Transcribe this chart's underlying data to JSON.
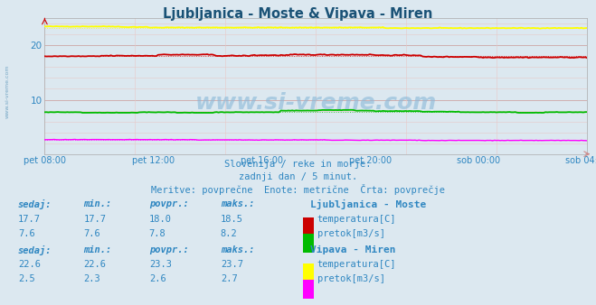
{
  "title": "Ljubljanica - Moste & Vipava - Miren",
  "title_color": "#1a5276",
  "bg_color": "#dce8f0",
  "plot_bg_color": "#dce8f0",
  "xlabel_ticks": [
    "pet 08:00",
    "pet 12:00",
    "pet 16:00",
    "pet 20:00",
    "sob 00:00",
    "sob 04:00"
  ],
  "ylim": [
    0,
    25
  ],
  "yticks": [
    10,
    20
  ],
  "grid_color": "#c8a0a0",
  "grid_color_light": "#e8c8c8",
  "watermark": "www.si-vreme.com",
  "subtitle1": "Slovenija / reke in morje.",
  "subtitle2": "zadnji dan / 5 minut.",
  "subtitle3": "Meritve: povprečne  Enote: metrične  Črta: povprečje",
  "subtitle_color": "#2e86c1",
  "num_points": 288,
  "lj_temp_avg": 18.0,
  "lj_temp_min": 17.7,
  "lj_temp_max": 18.5,
  "lj_temp_color": "#cc0000",
  "lj_pretok_avg": 7.8,
  "lj_pretok_min": 7.6,
  "lj_pretok_max": 8.2,
  "lj_pretok_color": "#00bb00",
  "vip_temp_avg": 23.3,
  "vip_temp_min": 22.6,
  "vip_temp_max": 23.7,
  "vip_temp_color": "#ffff00",
  "vip_pretok_avg": 2.6,
  "vip_pretok_min": 2.3,
  "vip_pretok_max": 2.7,
  "vip_pretok_color": "#ff00ff",
  "legend_label_lj": "Ljubljanica - Moste",
  "legend_label_vip": "Vipava - Miren",
  "label_temp": "temperatura[C]",
  "label_pretok": "pretok[m3/s]",
  "sedaj_lj_temp": 17.7,
  "min_lj_temp": 17.7,
  "povpr_lj_temp": 18.0,
  "maks_lj_temp": 18.5,
  "sedaj_lj_pretok": 7.6,
  "min_lj_pretok": 7.6,
  "povpr_lj_pretok": 7.8,
  "maks_lj_pretok": 8.2,
  "sedaj_vip_temp": 22.6,
  "min_vip_temp": 22.6,
  "povpr_vip_temp": 23.3,
  "maks_vip_temp": 23.7,
  "sedaj_vip_pretok": 2.5,
  "min_vip_pretok": 2.3,
  "povpr_vip_pretok": 2.6,
  "maks_vip_pretok": 2.7
}
